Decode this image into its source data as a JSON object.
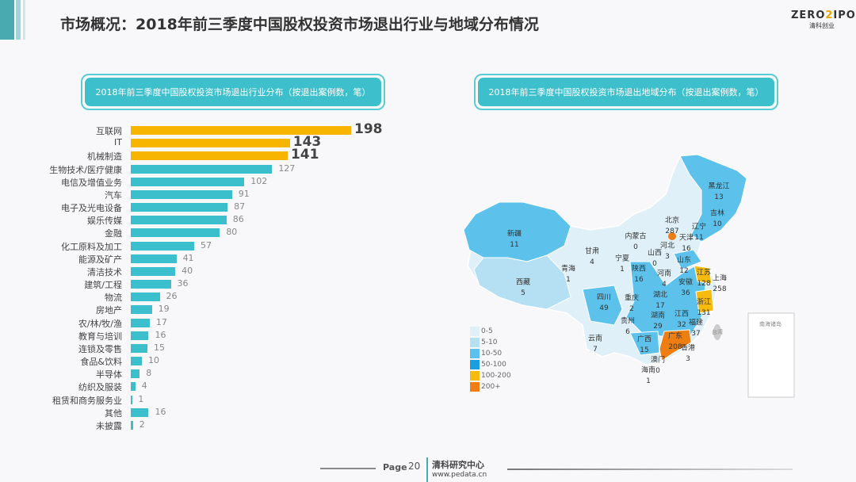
{
  "header": {
    "title": "市场概况：2018年前三季度中国股权投资市场退出行业与地域分布情况",
    "logo_top_a": "ZERO",
    "logo_top_b": "2",
    "logo_top_c": "IPO",
    "logo_bottom": "清科创业"
  },
  "chart_data": [
    {
      "type": "bar",
      "orientation": "horizontal",
      "title": "2018年前三季度中国股权投资市场退出行业分布（按退出案例数，笔）",
      "categories": [
        "互联网",
        "IT",
        "机械制造",
        "生物技术/医疗健康",
        "电信及增值业务",
        "汽车",
        "电子及光电设备",
        "娱乐传媒",
        "金融",
        "化工原料及加工",
        "能源及矿产",
        "清洁技术",
        "建筑/工程",
        "物流",
        "房地产",
        "农/林/牧/渔",
        "教育与培训",
        "连锁及零售",
        "食品&饮料",
        "半导体",
        "纺织及服装",
        "租赁和商务服务业",
        "其他",
        "未披露"
      ],
      "values": [
        198,
        143,
        141,
        127,
        102,
        91,
        87,
        86,
        80,
        57,
        41,
        40,
        36,
        26,
        19,
        17,
        16,
        15,
        10,
        8,
        4,
        1,
        16,
        2
      ],
      "highlight_top": 3,
      "colors": {
        "top": "#f7b500",
        "normal": "#3cbfcc"
      }
    },
    {
      "type": "map",
      "title": "2018年前三季度中国股权投资市场退出地域分布（按退出案例数，笔）",
      "regions": [
        {
          "name": "黑龙江",
          "value": 13
        },
        {
          "name": "吉林",
          "value": 10
        },
        {
          "name": "辽宁",
          "value": 11
        },
        {
          "name": "北京",
          "value": 287
        },
        {
          "name": "天津",
          "value": 16
        },
        {
          "name": "河北",
          "value": 3
        },
        {
          "name": "内蒙古",
          "value": 0
        },
        {
          "name": "山西",
          "value": 0
        },
        {
          "name": "山东",
          "value": 12
        },
        {
          "name": "江苏",
          "value": 128
        },
        {
          "name": "上海",
          "value": 258
        },
        {
          "name": "安徽",
          "value": 36
        },
        {
          "name": "浙江",
          "value": 131
        },
        {
          "name": "河南",
          "value": 4
        },
        {
          "name": "陕西",
          "value": 16
        },
        {
          "name": "宁夏",
          "value": 1
        },
        {
          "name": "甘肃",
          "value": 4
        },
        {
          "name": "青海",
          "value": 1
        },
        {
          "name": "新疆",
          "value": 11
        },
        {
          "name": "西藏",
          "value": 5
        },
        {
          "name": "四川",
          "value": 49
        },
        {
          "name": "重庆",
          "value": 2
        },
        {
          "name": "湖北",
          "value": 17
        },
        {
          "name": "湖南",
          "value": 29
        },
        {
          "name": "江西",
          "value": 32
        },
        {
          "name": "福建",
          "value": 37
        },
        {
          "name": "贵州",
          "value": 6
        },
        {
          "name": "云南",
          "value": 7
        },
        {
          "name": "广西",
          "value": 15
        },
        {
          "name": "广东",
          "value": 208
        },
        {
          "name": "香港",
          "value": 3
        },
        {
          "name": "澳门",
          "value": 0
        },
        {
          "name": "海南",
          "value": 1
        }
      ],
      "extra_labels": [
        "台湾",
        "南海诸岛"
      ],
      "legend": [
        {
          "label": "0-5",
          "color": "#dff0f8"
        },
        {
          "label": "5-10",
          "color": "#b5e0f3"
        },
        {
          "label": "10-50",
          "color": "#5cc2ec"
        },
        {
          "label": "50-100",
          "color": "#1a9ee0"
        },
        {
          "label": "100-200",
          "color": "#f7bb10"
        },
        {
          "label": "200+",
          "color": "#ee7d12"
        }
      ]
    }
  ],
  "footer": {
    "page_label": "Page",
    "page_number": "20",
    "org": "清科研究中心",
    "url": "www.pedata.cn"
  }
}
